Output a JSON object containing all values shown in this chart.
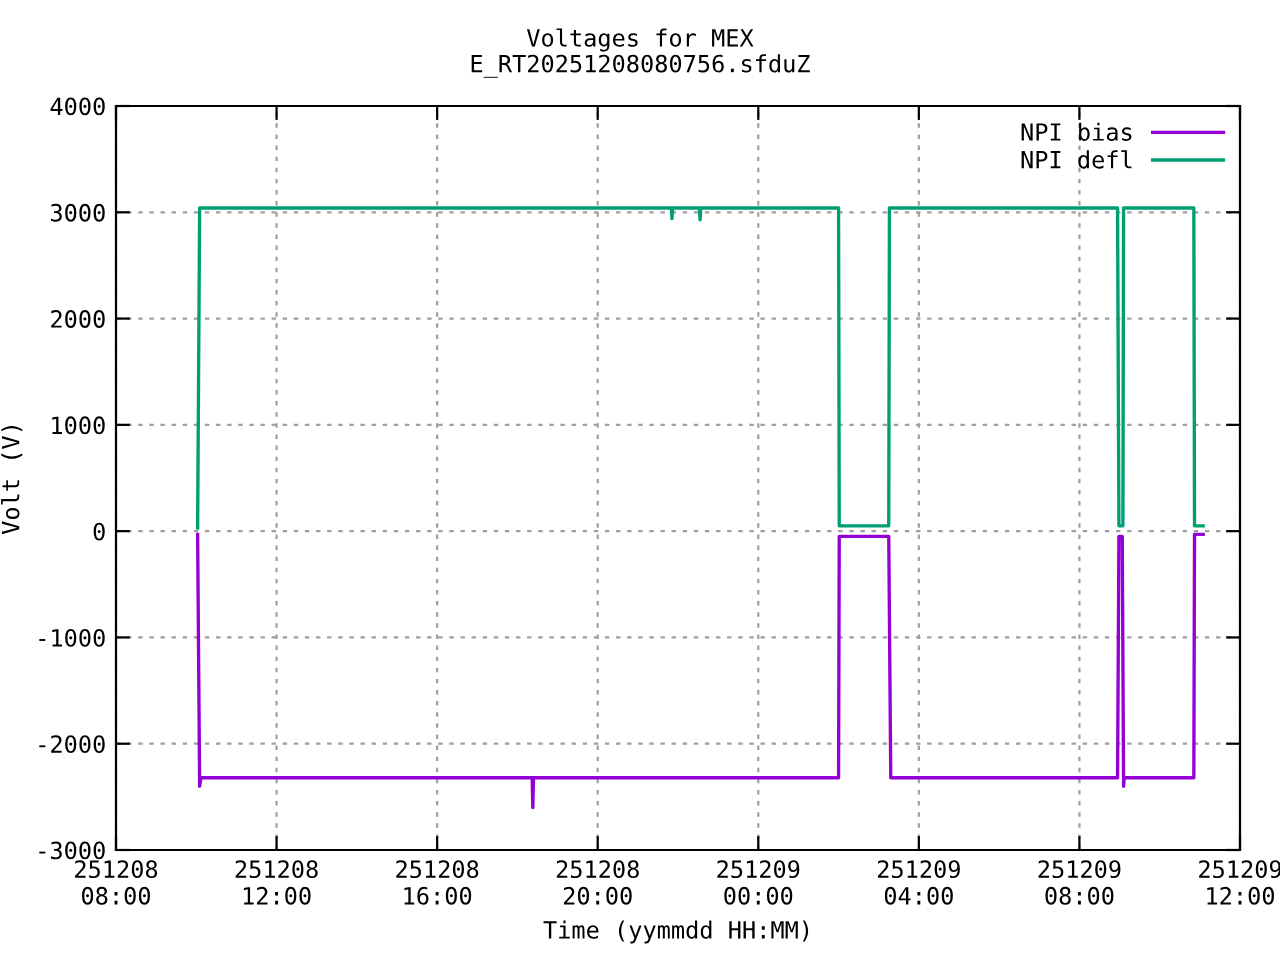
{
  "chart_data": {
    "type": "line",
    "title": "Voltages for MEX",
    "subtitle": "E_RT20251208080756.sfduZ",
    "xlabel": "Time (yymmdd HH:MM)",
    "ylabel": "Volt (V)",
    "series": [
      {
        "name": "NPI bias",
        "color": "#9400d3",
        "x": [
          "2025-12-08T10:02",
          "2025-12-08T10:05",
          "2025-12-08T10:07",
          "2025-12-08T18:22",
          "2025-12-08T18:23",
          "2025-12-08T18:24",
          "2025-12-09T02:00",
          "2025-12-09T02:01",
          "2025-12-09T03:15",
          "2025-12-09T03:18",
          "2025-12-09T08:57",
          "2025-12-09T08:59",
          "2025-12-09T09:04",
          "2025-12-09T09:06",
          "2025-12-09T09:07",
          "2025-12-09T10:51",
          "2025-12-09T10:52",
          "2025-12-09T11:05"
        ],
        "values": [
          -30,
          -2400,
          -2320,
          -2320,
          -2600,
          -2320,
          -2320,
          -50,
          -50,
          -2320,
          -2320,
          -50,
          -50,
          -2400,
          -2320,
          -2320,
          -30,
          -30
        ]
      },
      {
        "name": "NPI defl",
        "color": "#009e73",
        "x": [
          "2025-12-08T10:02",
          "2025-12-08T10:05",
          "2025-12-08T21:50",
          "2025-12-08T21:51",
          "2025-12-08T21:52",
          "2025-12-08T22:32",
          "2025-12-08T22:33",
          "2025-12-08T22:34",
          "2025-12-09T02:00",
          "2025-12-09T02:01",
          "2025-12-09T03:15",
          "2025-12-09T03:16",
          "2025-12-09T08:57",
          "2025-12-09T08:59",
          "2025-12-09T09:05",
          "2025-12-09T09:06",
          "2025-12-09T10:51",
          "2025-12-09T10:52",
          "2025-12-09T11:05"
        ],
        "values": [
          30,
          3040,
          3040,
          2940,
          3040,
          3040,
          2930,
          3040,
          3040,
          50,
          50,
          3040,
          3040,
          50,
          50,
          3040,
          3040,
          50,
          50
        ]
      }
    ],
    "xlim": [
      "2025-12-08T08:00",
      "2025-12-09T12:00"
    ],
    "xticks": [
      {
        "value": "2025-12-08T08:00",
        "label": "251208\n08:00"
      },
      {
        "value": "2025-12-08T12:00",
        "label": "251208\n12:00"
      },
      {
        "value": "2025-12-08T16:00",
        "label": "251208\n16:00"
      },
      {
        "value": "2025-12-08T20:00",
        "label": "251208\n20:00"
      },
      {
        "value": "2025-12-09T00:00",
        "label": "251209\n00:00"
      },
      {
        "value": "2025-12-09T04:00",
        "label": "251209\n04:00"
      },
      {
        "value": "2025-12-09T08:00",
        "label": "251209\n08:00"
      },
      {
        "value": "2025-12-09T12:00",
        "label": "251209\n12:00"
      }
    ],
    "ylim": [
      -3000,
      4000
    ],
    "yticks": [
      -3000,
      -2000,
      -1000,
      0,
      1000,
      2000,
      3000,
      4000
    ],
    "grid": true,
    "legend": "top right",
    "marker": "none",
    "line_style": "solid"
  }
}
